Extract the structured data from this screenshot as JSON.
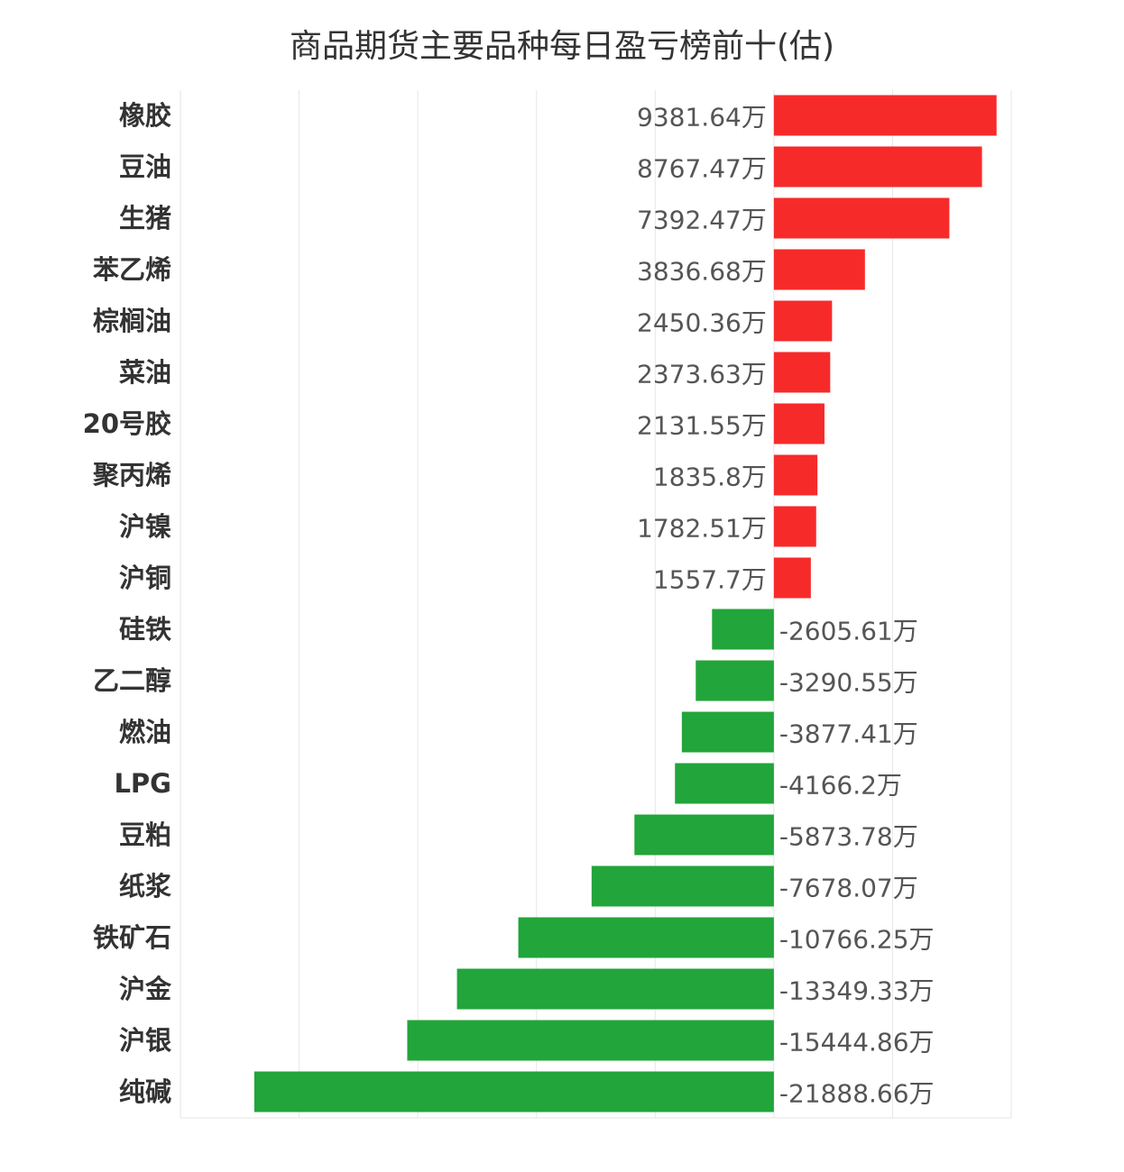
{
  "chart_data": {
    "type": "bar",
    "orientation": "horizontal",
    "title": "商品期货主要品种每日盈亏榜前十(估)",
    "unit": "万",
    "grid": true,
    "colors": {
      "positive": "#f72a2a",
      "negative": "#22a53a"
    },
    "categories": [
      "橡胶",
      "豆油",
      "生猪",
      "苯乙烯",
      "棕榈油",
      "菜油",
      "20号胶",
      "聚丙烯",
      "沪镍",
      "沪铜",
      "硅铁",
      "乙二醇",
      "燃油",
      "LPG",
      "豆粕",
      "纸浆",
      "铁矿石",
      "沪金",
      "沪银",
      "纯碱"
    ],
    "values": [
      9381.64,
      8767.47,
      7392.47,
      3836.68,
      2450.36,
      2373.63,
      2131.55,
      1835.8,
      1782.51,
      1557.7,
      -2605.61,
      -3290.55,
      -3877.41,
      -4166.2,
      -5873.78,
      -7678.07,
      -10766.25,
      -13349.33,
      -15444.86,
      -21888.66
    ],
    "value_labels": [
      "9381.64万",
      "8767.47万",
      "7392.47万",
      "3836.68万",
      "2450.36万",
      "2373.63万",
      "2131.55万",
      "1835.8万",
      "1782.51万",
      "1557.7万",
      "-2605.61万",
      "-3290.55万",
      "-3877.41万",
      "-4166.2万",
      "-5873.78万",
      "-7678.07万",
      "-10766.25万",
      "-13349.33万",
      "-15444.86万",
      "-21888.66万"
    ],
    "xlim": [
      -25000,
      10000
    ]
  }
}
